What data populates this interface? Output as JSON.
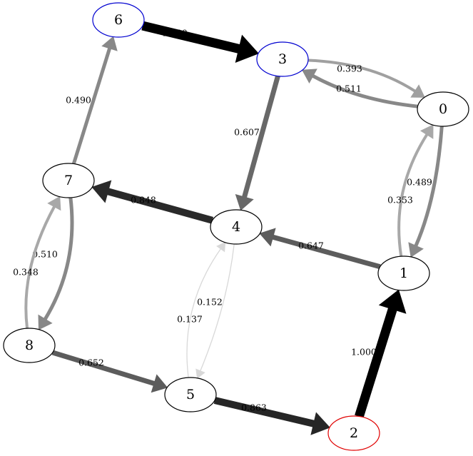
{
  "graph": {
    "nodes": [
      {
        "id": "0",
        "label": "0",
        "stroke": "#000000"
      },
      {
        "id": "1",
        "label": "1",
        "stroke": "#000000"
      },
      {
        "id": "2",
        "label": "2",
        "stroke": "#e00000"
      },
      {
        "id": "3",
        "label": "3",
        "stroke": "#0000d0"
      },
      {
        "id": "4",
        "label": "4",
        "stroke": "#000000"
      },
      {
        "id": "5",
        "label": "5",
        "stroke": "#000000"
      },
      {
        "id": "6",
        "label": "6",
        "stroke": "#0000d0"
      },
      {
        "id": "7",
        "label": "7",
        "stroke": "#000000"
      },
      {
        "id": "8",
        "label": "8",
        "stroke": "#000000"
      }
    ],
    "edges": [
      {
        "from": "6",
        "to": "3",
        "weight": "1.000",
        "color": "#000000"
      },
      {
        "from": "3",
        "to": "0",
        "weight": "0.393",
        "color": "#a0a0a0"
      },
      {
        "from": "0",
        "to": "3",
        "weight": "0.511",
        "color": "#888888"
      },
      {
        "from": "3",
        "to": "4",
        "weight": "0.607",
        "color": "#686868"
      },
      {
        "from": "0",
        "to": "1",
        "weight": "0.489",
        "color": "#888888"
      },
      {
        "from": "1",
        "to": "0",
        "weight": "0.353",
        "color": "#a8a8a8"
      },
      {
        "from": "1",
        "to": "4",
        "weight": "0.647",
        "color": "#5c5c5c"
      },
      {
        "from": "4",
        "to": "7",
        "weight": "0.848",
        "color": "#2a2a2a"
      },
      {
        "from": "7",
        "to": "6",
        "weight": "0.490",
        "color": "#888888"
      },
      {
        "from": "7",
        "to": "8",
        "weight": "0.510",
        "color": "#888888"
      },
      {
        "from": "8",
        "to": "7",
        "weight": "0.348",
        "color": "#a8a8a8"
      },
      {
        "from": "4",
        "to": "5",
        "weight": "0.152",
        "color": "#d8d8d8"
      },
      {
        "from": "5",
        "to": "4",
        "weight": "0.137",
        "color": "#d8d8d8"
      },
      {
        "from": "8",
        "to": "5",
        "weight": "0.652",
        "color": "#5c5c5c"
      },
      {
        "from": "5",
        "to": "2",
        "weight": "0.863",
        "color": "#262626"
      },
      {
        "from": "2",
        "to": "1",
        "weight": "1.000",
        "color": "#000000"
      }
    ]
  }
}
